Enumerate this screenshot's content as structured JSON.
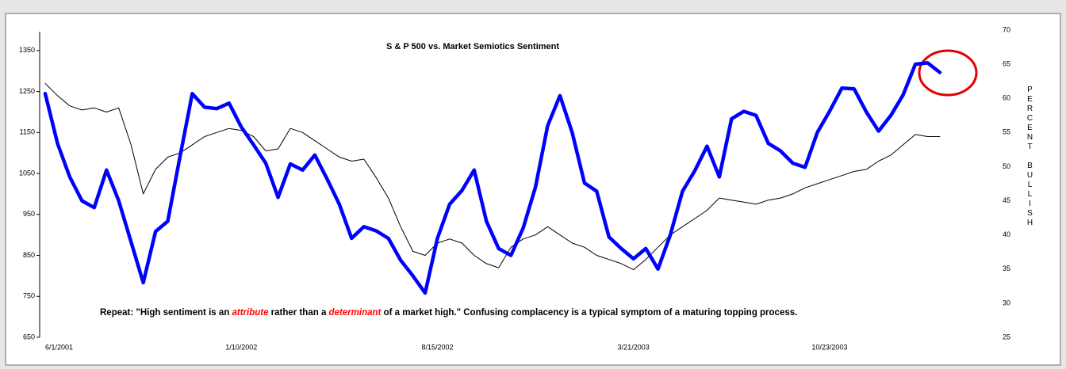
{
  "chart_data": {
    "type": "line",
    "title": "S & P 500 vs. Market Semiotics Sentiment",
    "y2_label": "PERCENT BULLISH",
    "annotation": [
      {
        "text": "Repeat: \"High sentiment is an "
      },
      {
        "text": "attribute",
        "color": "#ff0000"
      },
      {
        "text": " rather than a "
      },
      {
        "text": "determinant",
        "color": "#ff0000"
      },
      {
        "text": " of a market high.\" Confusing complacency is a typical symptom of a maturing topping process."
      }
    ],
    "categories": [
      "6/1/2001",
      null,
      null,
      null,
      null,
      null,
      null,
      null,
      null,
      null,
      null,
      null,
      null,
      null,
      null,
      null,
      "1/10/2002",
      null,
      null,
      null,
      null,
      null,
      null,
      null,
      null,
      null,
      null,
      null,
      null,
      null,
      null,
      null,
      "8/15/2002",
      null,
      null,
      null,
      null,
      null,
      null,
      null,
      null,
      null,
      null,
      null,
      null,
      null,
      null,
      null,
      "3/21/2003",
      null,
      null,
      null,
      null,
      null,
      null,
      null,
      null,
      null,
      null,
      null,
      null,
      null,
      null,
      null,
      "10/23/2003",
      null,
      null,
      null,
      null,
      null,
      null,
      null,
      null,
      null
    ],
    "series": [
      {
        "color": "#000000",
        "values": [
          1270,
          1240,
          1215,
          1205,
          1210,
          1200,
          1210,
          1120,
          1000,
          1060,
          1090,
          1100,
          1120,
          1140,
          1150,
          1160,
          1155,
          1140,
          1105,
          1110,
          1160,
          1150,
          1130,
          1110,
          1090,
          1080,
          1085,
          1040,
          990,
          920,
          860,
          850,
          880,
          890,
          880,
          850,
          830,
          820,
          870,
          890,
          900,
          920,
          900,
          880,
          870,
          850,
          840,
          830,
          815,
          840,
          870,
          900,
          920,
          940,
          960,
          990,
          985,
          980,
          975,
          985,
          990,
          1000,
          1015,
          1025,
          1035,
          1045,
          1055,
          1060,
          1080,
          1095,
          1120,
          1145,
          1140,
          1140
        ]
      },
      {
        "color": "#0000ff",
        "axis": "y2",
        "values": [
          60.7,
          53.4,
          48.5,
          45,
          44,
          49.5,
          45,
          39,
          33,
          40.5,
          42,
          51.5,
          60.7,
          58.7,
          58.5,
          59.3,
          55.8,
          53.2,
          50.5,
          45.5,
          50.4,
          49.5,
          51.7,
          48.2,
          44.5,
          39.5,
          41.2,
          40.6,
          39.5,
          36.3,
          34,
          31.5,
          39.5,
          44.5,
          46.5,
          49.5,
          42,
          38,
          37,
          41,
          47,
          56,
          60.4,
          55,
          47.6,
          46.4,
          39.7,
          38,
          36.5,
          38,
          35,
          40,
          46.4,
          49.4,
          53,
          48.5,
          57,
          58.1,
          57.5,
          53.4,
          52.3,
          50.5,
          49.9,
          55,
          58.1,
          61.5,
          61.4,
          58,
          55.2,
          57.5,
          60.5,
          65,
          65.2,
          63.8
        ]
      }
    ],
    "ylim": [
      650,
      1400
    ],
    "yticks": [
      650,
      750,
      850,
      950,
      1050,
      1150,
      1250,
      1350
    ],
    "y2lim": [
      25,
      70
    ],
    "y2ticks": [
      25,
      30,
      35,
      40,
      45,
      50,
      55,
      60,
      65,
      70
    ]
  }
}
